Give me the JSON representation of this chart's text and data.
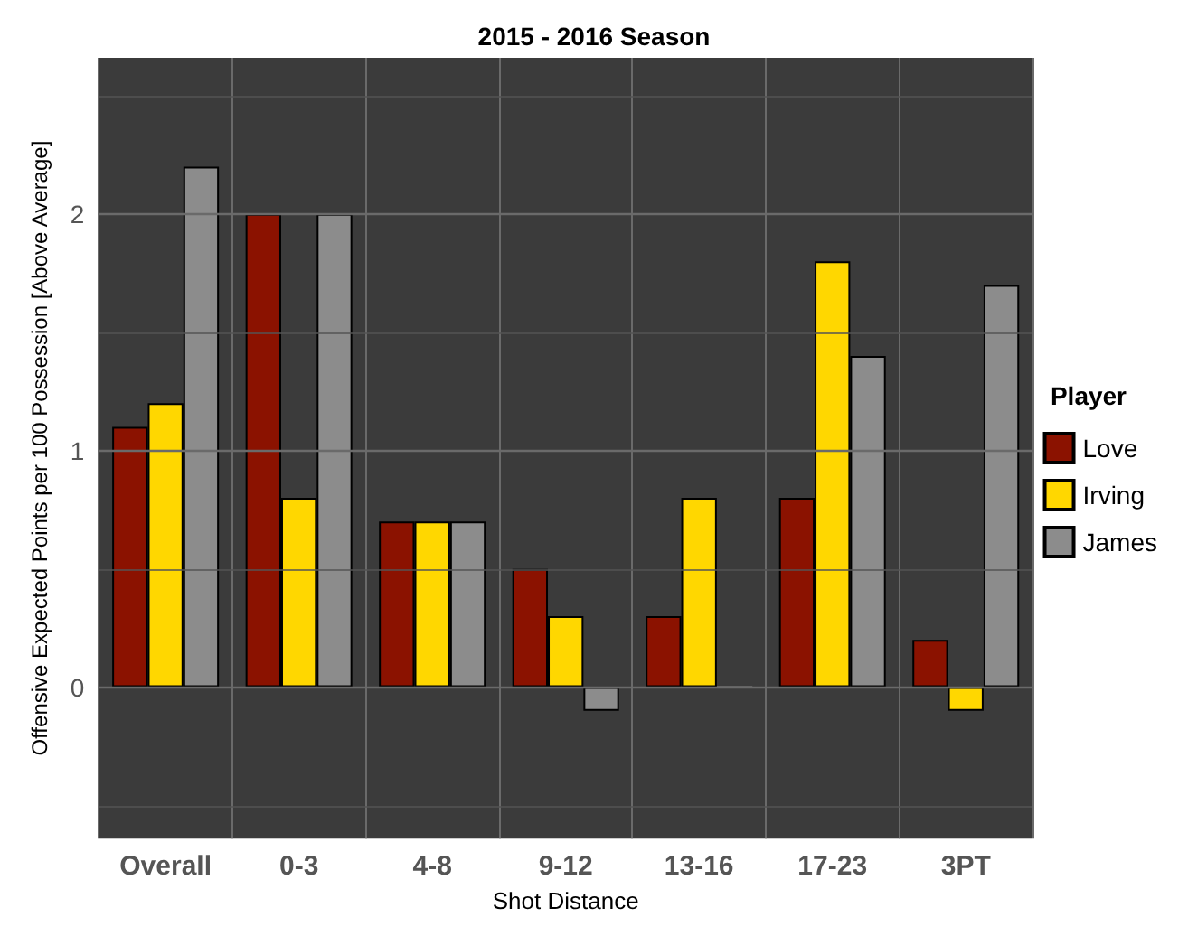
{
  "chart_data": {
    "type": "bar",
    "title": "2015 - 2016 Season",
    "xlabel": "Shot Distance",
    "ylabel": "Offensive Expected Points per 100 Possession [Above Average]",
    "legend_title": "Player",
    "categories": [
      "Overall",
      "0-3",
      "4-8",
      "9-12",
      "13-16",
      "17-23",
      "3PT"
    ],
    "series": [
      {
        "name": "Love",
        "color": "#8b1200",
        "values": [
          1.1,
          2.0,
          0.7,
          0.5,
          0.3,
          0.8,
          0.2
        ]
      },
      {
        "name": "Irving",
        "color": "#ffd700",
        "values": [
          1.2,
          0.8,
          0.7,
          0.3,
          0.8,
          1.8,
          -0.1
        ]
      },
      {
        "name": "James",
        "color": "#8c8c8c",
        "values": [
          2.2,
          2.0,
          0.7,
          -0.1,
          0,
          1.4,
          1.7
        ]
      }
    ],
    "ylim": [
      -0.64,
      2.66
    ],
    "yticks": [
      {
        "value": -0.5,
        "label": null
      },
      0,
      {
        "value": 0.5,
        "label": null
      },
      1,
      {
        "value": 1.5,
        "label": null
      },
      2,
      {
        "value": 2.5,
        "label": null
      }
    ],
    "grid": true,
    "legend": "right"
  }
}
